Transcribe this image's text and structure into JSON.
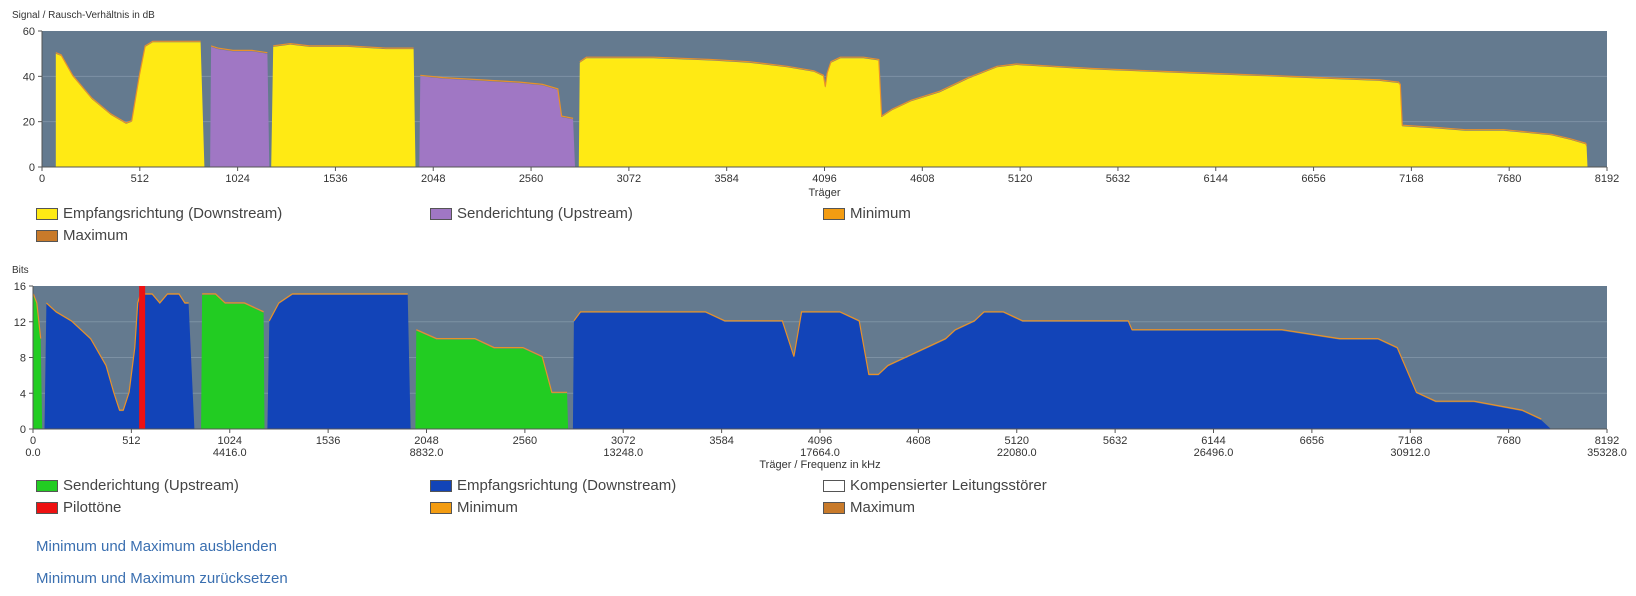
{
  "chart_data": [
    {
      "type": "area",
      "ylabel": "Signal / Rausch-Verhältnis in dB",
      "xlabel": "Träger",
      "xlim": [
        0,
        8192
      ],
      "ylim": [
        0,
        60
      ],
      "x_ticks": [
        0,
        512,
        1024,
        1536,
        2048,
        2560,
        3072,
        3584,
        4096,
        4608,
        5120,
        5632,
        6144,
        6656,
        7168,
        7680,
        8192
      ],
      "y_ticks": [
        0,
        20,
        40,
        60
      ],
      "grid": true,
      "legend_position": "bottom",
      "series": [
        {
          "name": "Empfangsrichtung (Downstream)",
          "color": "#ffea14",
          "segments": [
            [
              [
                72,
                0
              ],
              [
                72,
                50
              ],
              [
                100,
                49
              ],
              [
                160,
                40
              ],
              [
                260,
                30
              ],
              [
                360,
                23
              ],
              [
                440,
                19
              ],
              [
                470,
                20
              ],
              [
                510,
                40
              ],
              [
                540,
                53
              ],
              [
                580,
                55
              ],
              [
                660,
                55
              ],
              [
                760,
                55
              ],
              [
                830,
                55
              ],
              [
                850,
                0
              ]
            ],
            [
              [
                1200,
                0
              ],
              [
                1210,
                53
              ],
              [
                1300,
                54
              ],
              [
                1400,
                53
              ],
              [
                1600,
                53
              ],
              [
                1800,
                52
              ],
              [
                1945,
                52
              ],
              [
                1955,
                0
              ]
            ],
            [
              [
                2810,
                0
              ],
              [
                2815,
                46
              ],
              [
                2850,
                48
              ],
              [
                3000,
                48
              ],
              [
                3200,
                48
              ],
              [
                3500,
                47
              ],
              [
                3700,
                46
              ],
              [
                3900,
                44
              ],
              [
                4040,
                42
              ],
              [
                4090,
                40
              ],
              [
                4100,
                35
              ],
              [
                4110,
                41
              ],
              [
                4130,
                46
              ],
              [
                4180,
                48
              ],
              [
                4300,
                48
              ],
              [
                4380,
                47
              ],
              [
                4395,
                22
              ],
              [
                4450,
                25
              ],
              [
                4550,
                29
              ],
              [
                4700,
                33
              ],
              [
                4850,
                39
              ],
              [
                5000,
                44
              ],
              [
                5100,
                45
              ],
              [
                5300,
                44
              ],
              [
                5500,
                43
              ],
              [
                5800,
                42
              ],
              [
                6100,
                41
              ],
              [
                6400,
                40
              ],
              [
                6700,
                39
              ],
              [
                7000,
                38
              ],
              [
                7100,
                37
              ],
              [
                7110,
                36
              ],
              [
                7120,
                18
              ],
              [
                7300,
                17
              ],
              [
                7450,
                16
              ],
              [
                7650,
                16
              ],
              [
                7900,
                14
              ],
              [
                8000,
                12
              ],
              [
                8080,
                10
              ],
              [
                8085,
                9
              ],
              [
                8090,
                0
              ]
            ]
          ]
        },
        {
          "name": "Senderichtung (Upstream)",
          "color": "#a077c4",
          "segments": [
            [
              [
                880,
                0
              ],
              [
                885,
                53
              ],
              [
                920,
                52
              ],
              [
                1000,
                51
              ],
              [
                1100,
                51
              ],
              [
                1180,
                50
              ],
              [
                1190,
                0
              ]
            ],
            [
              [
                1975,
                0
              ],
              [
                1980,
                40
              ],
              [
                2100,
                39
              ],
              [
                2300,
                38
              ],
              [
                2500,
                37
              ],
              [
                2620,
                36
              ],
              [
                2700,
                34
              ],
              [
                2720,
                22
              ],
              [
                2780,
                21
              ],
              [
                2790,
                0
              ]
            ]
          ]
        },
        {
          "name": "Minimum",
          "color": "#f39c12",
          "values": []
        },
        {
          "name": "Maximum",
          "color": "#c87a2a",
          "values": []
        }
      ]
    },
    {
      "type": "area",
      "ylabel": "Bits",
      "xlabel": "Träger / Frequenz in kHz",
      "xlim": [
        0,
        8192
      ],
      "ylim": [
        0,
        16
      ],
      "x_ticks": [
        0,
        512,
        1024,
        1536,
        2048,
        2560,
        3072,
        3584,
        4096,
        4608,
        5120,
        5632,
        6144,
        6656,
        7168,
        7680,
        8192
      ],
      "x_freq_ticks": {
        "0": "0.0",
        "1024": "4416.0",
        "2048": "8832.0",
        "3072": "13248.0",
        "4096": "17664.0",
        "5120": "22080.0",
        "6144": "26496.0",
        "7168": "30912.0",
        "8192": "35328.0"
      },
      "y_ticks": [
        0,
        4,
        8,
        12,
        16
      ],
      "grid": true,
      "legend_position": "bottom",
      "series": [
        {
          "name": "Senderichtung (Upstream)",
          "color": "#22cc22",
          "segments": [
            [
              [
                0,
                0
              ],
              [
                2,
                15
              ],
              [
                20,
                14
              ],
              [
                40,
                10
              ],
              [
                48,
                0
              ]
            ],
            [
              [
                875,
                0
              ],
              [
                880,
                15
              ],
              [
                950,
                15
              ],
              [
                1000,
                14
              ],
              [
                1100,
                14
              ],
              [
                1200,
                13
              ],
              [
                1205,
                0
              ]
            ],
            [
              [
                1990,
                0
              ],
              [
                1995,
                11
              ],
              [
                2100,
                10
              ],
              [
                2300,
                10
              ],
              [
                2400,
                9
              ],
              [
                2550,
                9
              ],
              [
                2650,
                8
              ],
              [
                2700,
                4
              ],
              [
                2780,
                4
              ],
              [
                2785,
                0
              ]
            ]
          ]
        },
        {
          "name": "Empfangsrichtung (Downstream)",
          "color": "#1244b8",
          "segments": [
            [
              [
                60,
                0
              ],
              [
                70,
                14
              ],
              [
                120,
                13
              ],
              [
                200,
                12
              ],
              [
                300,
                10
              ],
              [
                380,
                7
              ],
              [
                420,
                4
              ],
              [
                450,
                2
              ],
              [
                470,
                2
              ],
              [
                500,
                4
              ],
              [
                530,
                9
              ],
              [
                545,
                14
              ],
              [
                560,
                15
              ],
              [
                620,
                15
              ],
              [
                660,
                14
              ],
              [
                700,
                15
              ],
              [
                760,
                15
              ],
              [
                790,
                14
              ],
              [
                810,
                14
              ],
              [
                840,
                0
              ]
            ],
            [
              [
                1220,
                0
              ],
              [
                1230,
                12
              ],
              [
                1280,
                14
              ],
              [
                1350,
                15
              ],
              [
                1500,
                15
              ],
              [
                1700,
                15
              ],
              [
                1950,
                15
              ],
              [
                1965,
                0
              ]
            ],
            [
              [
                2810,
                0
              ],
              [
                2815,
                12
              ],
              [
                2850,
                13
              ],
              [
                3000,
                13
              ],
              [
                3200,
                13
              ],
              [
                3500,
                13
              ],
              [
                3600,
                12
              ],
              [
                3700,
                12
              ],
              [
                3900,
                12
              ],
              [
                3960,
                8
              ],
              [
                4000,
                13
              ],
              [
                4100,
                13
              ],
              [
                4200,
                13
              ],
              [
                4300,
                12
              ],
              [
                4350,
                6
              ],
              [
                4400,
                6
              ],
              [
                4450,
                7
              ],
              [
                4550,
                8
              ],
              [
                4650,
                9
              ],
              [
                4750,
                10
              ],
              [
                4800,
                11
              ],
              [
                4900,
                12
              ],
              [
                4950,
                13
              ],
              [
                5050,
                13
              ],
              [
                5150,
                12
              ],
              [
                5400,
                12
              ],
              [
                5700,
                12
              ],
              [
                5720,
                11
              ],
              [
                5900,
                11
              ],
              [
                6200,
                11
              ],
              [
                6500,
                11
              ],
              [
                6800,
                10
              ],
              [
                7000,
                10
              ],
              [
                7100,
                9
              ],
              [
                7200,
                4
              ],
              [
                7300,
                3
              ],
              [
                7500,
                3
              ],
              [
                7750,
                2
              ],
              [
                7850,
                1
              ],
              [
                7900,
                0
              ]
            ]
          ]
        },
        {
          "name": "Kompensierter Leitungsstörer",
          "color": "#ffffff",
          "values": []
        },
        {
          "name": "Pilottöne",
          "color": "#ee1111",
          "markers_x": [
            568
          ]
        },
        {
          "name": "Minimum",
          "color": "#f39c12",
          "values": []
        },
        {
          "name": "Maximum",
          "color": "#c87a2a",
          "values": []
        }
      ]
    }
  ],
  "links": {
    "hide": "Minimum und Maximum ausblenden",
    "reset": "Minimum und Maximum zurücksetzen"
  }
}
